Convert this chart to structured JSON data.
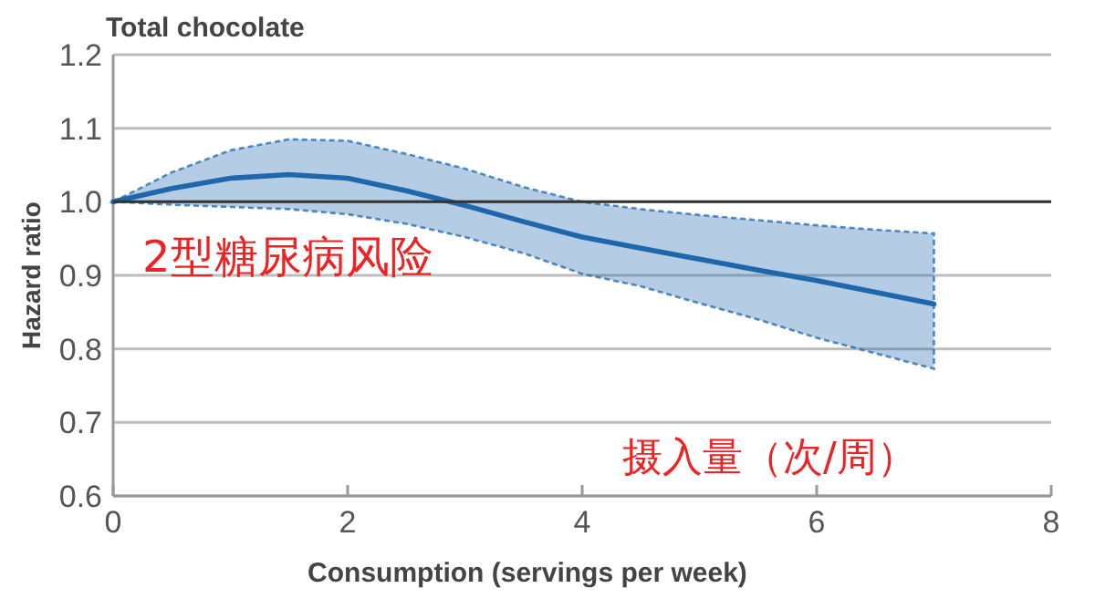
{
  "chart_data": {
    "type": "line",
    "title": "Total chocolate",
    "xlabel": "Consumption (servings per week)",
    "ylabel": "Hazard ratio",
    "x": [
      0,
      0.5,
      1,
      1.5,
      2,
      2.5,
      3,
      3.5,
      4,
      4.5,
      5,
      5.5,
      6,
      6.5,
      7
    ],
    "series": [
      {
        "color": "#1f67ad",
        "values": [
          1.0,
          1.018,
          1.032,
          1.037,
          1.032,
          1.015,
          0.995,
          0.973,
          0.952,
          0.937,
          0.922,
          0.907,
          0.893,
          0.877,
          0.861
        ],
        "upper": [
          1.0,
          1.04,
          1.07,
          1.085,
          1.083,
          1.065,
          1.045,
          1.02,
          1.0,
          0.99,
          0.982,
          0.975,
          0.968,
          0.962,
          0.957
        ],
        "lower": [
          1.0,
          0.996,
          0.993,
          0.99,
          0.983,
          0.97,
          0.952,
          0.93,
          0.902,
          0.885,
          0.862,
          0.84,
          0.815,
          0.794,
          0.773
        ]
      }
    ],
    "xlim": [
      0,
      8
    ],
    "ylim": [
      0.6,
      1.2
    ],
    "xticks": [
      0,
      2,
      4,
      6,
      8
    ],
    "yticks": [
      {
        "value": 0.6,
        "label": "0.6"
      },
      {
        "value": 0.7,
        "label": "0.7"
      },
      {
        "value": 0.8,
        "label": "0.8"
      },
      {
        "value": 0.9,
        "label": "0.9"
      },
      {
        "value": 1,
        "label": "1.0"
      },
      {
        "value": 1.1,
        "label": "1.1"
      },
      {
        "value": 1.2,
        "label": "1.2"
      }
    ],
    "grid": "y",
    "ref_lines": [
      {
        "axis": "y",
        "value": 1,
        "color": "#333333"
      }
    ],
    "annotations": [
      "2型糖尿病风险",
      "摄入量（次/周）"
    ]
  }
}
